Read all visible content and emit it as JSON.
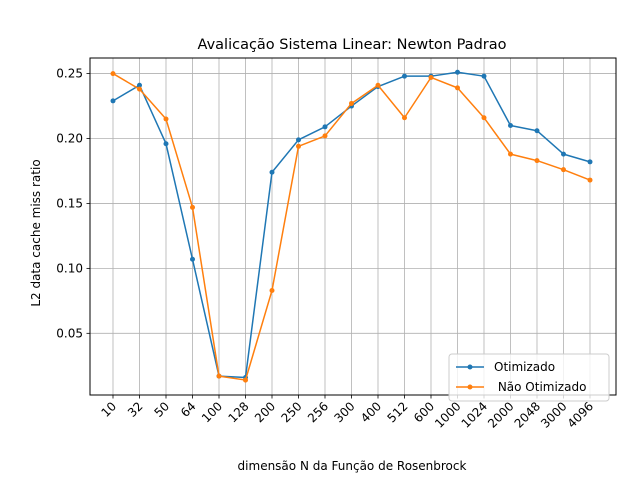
{
  "chart_data": {
    "type": "line",
    "title": "Avalicação Sistema Linear:  Newton Padrao",
    "xlabel": "dimensão N da Função de Rosenbrock",
    "ylabel": "L2 data cache miss ratio",
    "categories": [
      "10",
      "32",
      "50",
      "64",
      "100",
      "128",
      "200",
      "250",
      "256",
      "300",
      "400",
      "512",
      "600",
      "1000",
      "1024",
      "2000",
      "2048",
      "3000",
      "4096"
    ],
    "series": [
      {
        "name": "Otimizado",
        "color": "#1f77b4",
        "values": [
          0.229,
          0.241,
          0.196,
          0.107,
          0.017,
          0.016,
          0.174,
          0.199,
          0.209,
          0.225,
          0.24,
          0.248,
          0.248,
          0.251,
          0.248,
          0.21,
          0.206,
          0.188,
          0.182
        ]
      },
      {
        "name": " Não Otimizado",
        "color": "#ff7f0e",
        "values": [
          0.25,
          0.238,
          0.215,
          0.147,
          0.017,
          0.014,
          0.083,
          0.194,
          0.202,
          0.227,
          0.241,
          0.216,
          0.247,
          0.239,
          0.216,
          0.188,
          0.183,
          0.176,
          0.168
        ]
      }
    ],
    "yticks": [
      0.05,
      0.1,
      0.15,
      0.2,
      0.25
    ],
    "ytick_labels": [
      "0.05",
      "0.10",
      "0.15",
      "0.20",
      "0.25"
    ],
    "ylim": [
      0.0025,
      0.262
    ],
    "grid": true,
    "legend_position": "lower-right",
    "x_tick_rotation": 45
  }
}
